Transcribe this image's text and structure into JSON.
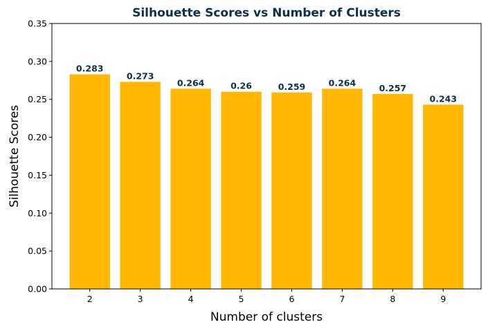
{
  "chart_data": {
    "type": "bar",
    "title": "Silhouette Scores vs Number of Clusters",
    "xlabel": "Number of clusters",
    "ylabel": "Silhouette Scores",
    "categories": [
      "2",
      "3",
      "4",
      "5",
      "6",
      "7",
      "8",
      "9"
    ],
    "values": [
      0.283,
      0.273,
      0.264,
      0.26,
      0.259,
      0.264,
      0.257,
      0.243
    ],
    "data_labels": [
      "0.283",
      "0.273",
      "0.264",
      "0.26",
      "0.259",
      "0.264",
      "0.257",
      "0.243"
    ],
    "ylim": [
      0,
      0.35
    ],
    "yticks": [
      "0.00",
      "0.05",
      "0.10",
      "0.15",
      "0.20",
      "0.25",
      "0.30",
      "0.35"
    ],
    "grid": false,
    "legend": "none",
    "bar_color": "#ffb703",
    "title_color": "#0b3048",
    "label_color": "#0b3048"
  }
}
